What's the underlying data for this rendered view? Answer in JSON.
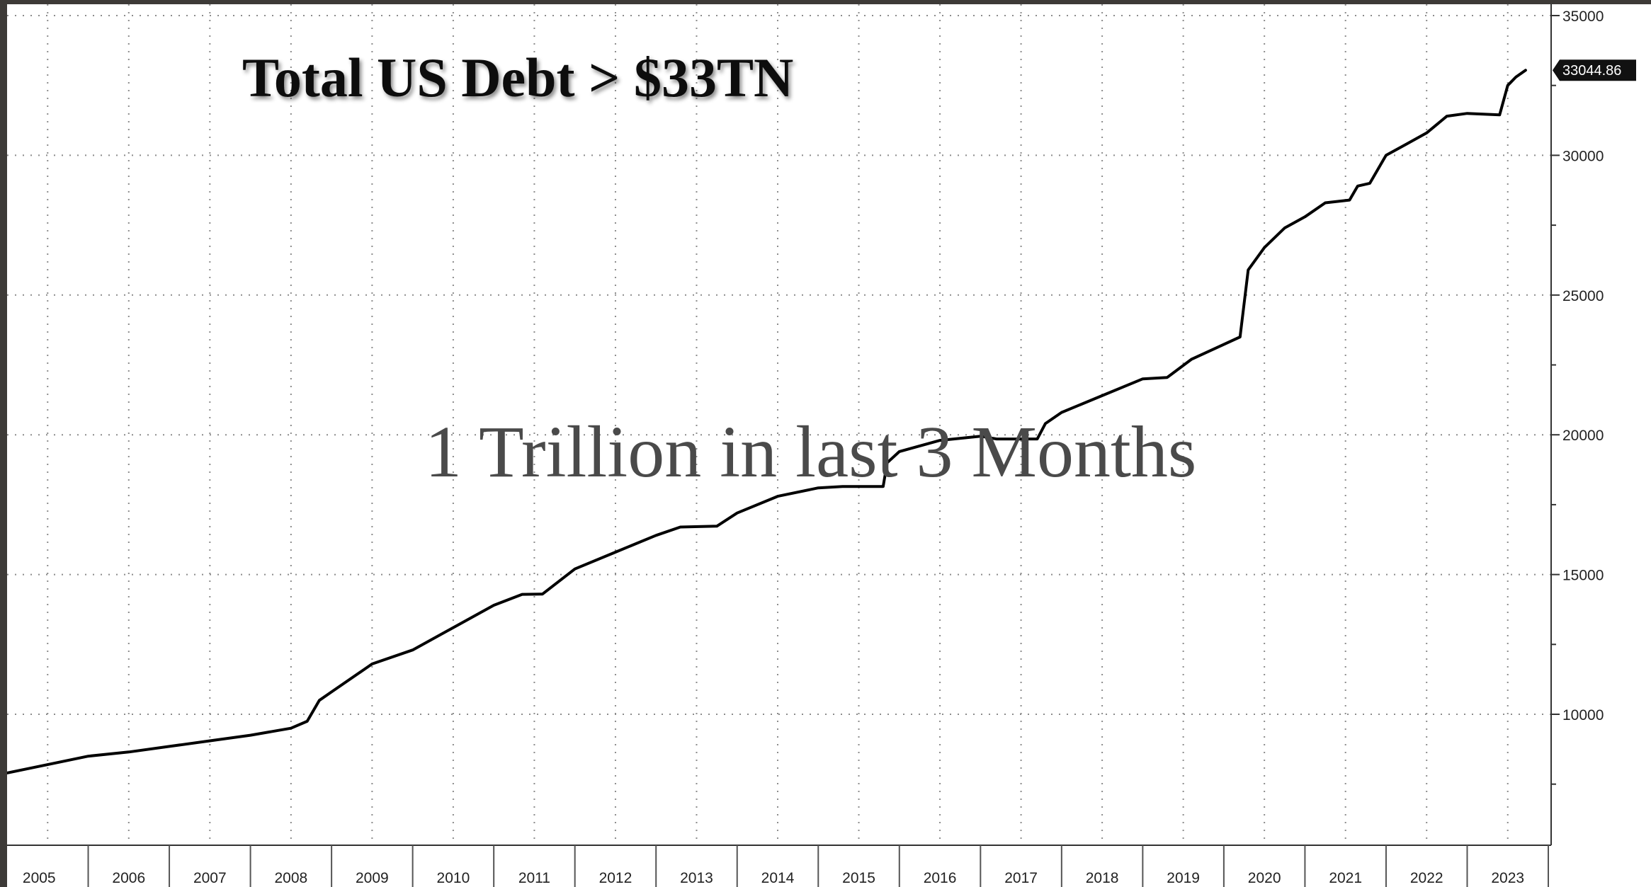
{
  "chart_data": {
    "type": "line",
    "title": "Total US Debt > $33TN",
    "annotation": "1 Trillion in last 3 Months",
    "xlabel": "",
    "ylabel": "",
    "x_tick_labels": [
      "2005",
      "2006",
      "2007",
      "2008",
      "2009",
      "2010",
      "2011",
      "2012",
      "2013",
      "2014",
      "2015",
      "2016",
      "2017",
      "2018",
      "2019",
      "2020",
      "2021",
      "2022",
      "2023"
    ],
    "y_ticks": [
      {
        "value": 10000,
        "label": "10000"
      },
      {
        "value": 15000,
        "label": "15000"
      },
      {
        "value": 20000,
        "label": "20000"
      },
      {
        "value": 25000,
        "label": "25000"
      },
      {
        "value": 30000,
        "label": "30000"
      },
      {
        "value": 35000,
        "label": "35000"
      }
    ],
    "xlim": [
      2005.0,
      2024.0
    ],
    "ylim": [
      5000,
      35000
    ],
    "grid": true,
    "axis_side": "right",
    "last_value_label": "33044.86",
    "series": [
      {
        "color": "#000000",
        "x": [
          2005.0,
          2005.5,
          2006.0,
          2006.5,
          2007.0,
          2007.5,
          2008.0,
          2008.5,
          2008.7,
          2008.85,
          2009.0,
          2009.5,
          2010.0,
          2010.5,
          2011.0,
          2011.35,
          2011.6,
          2012.0,
          2012.5,
          2013.0,
          2013.3,
          2013.75,
          2014.0,
          2014.5,
          2015.0,
          2015.3,
          2015.8,
          2015.85,
          2016.0,
          2016.5,
          2017.0,
          2017.2,
          2017.7,
          2017.8,
          2018.0,
          2018.5,
          2019.0,
          2019.3,
          2019.6,
          2019.9,
          2020.2,
          2020.3,
          2020.5,
          2020.75,
          2021.0,
          2021.25,
          2021.55,
          2021.65,
          2021.8,
          2022.0,
          2022.25,
          2022.5,
          2022.75,
          2023.0,
          2023.4,
          2023.5,
          2023.6,
          2023.72
        ],
        "y": [
          7900,
          8200,
          8500,
          8650,
          8850,
          9050,
          9250,
          9500,
          9750,
          10500,
          10800,
          11800,
          12300,
          13100,
          13900,
          14290,
          14300,
          15200,
          15800,
          16400,
          16700,
          16730,
          17200,
          17800,
          18100,
          18150,
          18150,
          19000,
          19400,
          19800,
          19950,
          19850,
          19850,
          20400,
          20800,
          21400,
          22000,
          22050,
          22700,
          23100,
          23500,
          25900,
          26700,
          27400,
          27800,
          28300,
          28400,
          28900,
          29000,
          30000,
          30400,
          30800,
          31400,
          31500,
          31450,
          32500,
          32800,
          33044.86
        ]
      }
    ]
  }
}
